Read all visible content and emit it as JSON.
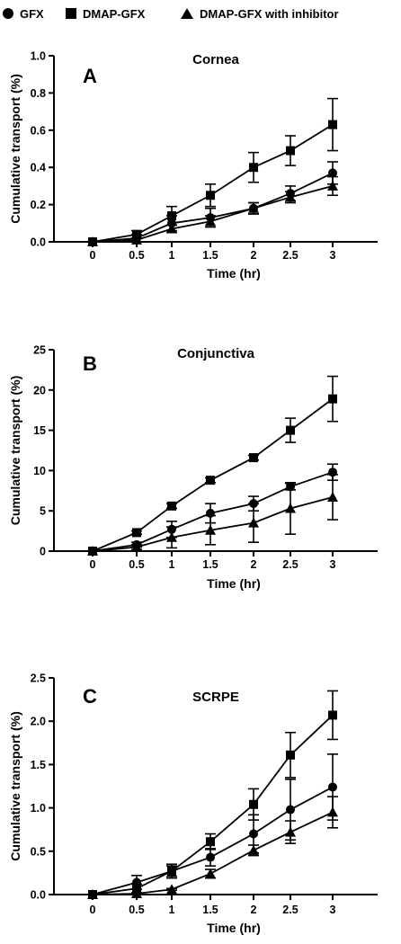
{
  "legend": {
    "items": [
      {
        "label": "GFX",
        "marker": "circle"
      },
      {
        "label": "DMAP-GFX",
        "marker": "square"
      },
      {
        "label": "DMAP-GFX with inhibitor",
        "marker": "triangle"
      }
    ]
  },
  "chart_data": [
    {
      "type": "line",
      "panel_letter": "A",
      "title": "Cornea",
      "xlabel": "Time (hr)",
      "ylabel": "Cumulative transport (%)",
      "x": [
        0,
        0.5,
        1,
        1.5,
        2,
        2.5,
        3
      ],
      "xticks": [
        "0",
        "0.5",
        "1",
        "1.5",
        "2",
        "2.5",
        "3"
      ],
      "ylim": [
        0,
        1.0
      ],
      "yticks": [
        "0.0",
        "0.2",
        "0.4",
        "0.6",
        "0.8",
        "1.0"
      ],
      "grid": false,
      "legend_position": "top",
      "series": [
        {
          "name": "GFX",
          "marker": "circle",
          "values": [
            0,
            0.02,
            0.1,
            0.13,
            0.18,
            0.26,
            0.37
          ],
          "errors": [
            0,
            0.02,
            0.04,
            0.05,
            0.03,
            0.04,
            0.06
          ]
        },
        {
          "name": "DMAP-GFX",
          "marker": "square",
          "values": [
            0,
            0.04,
            0.14,
            0.25,
            0.4,
            0.49,
            0.63
          ],
          "errors": [
            0,
            0.02,
            0.05,
            0.06,
            0.08,
            0.08,
            0.14
          ]
        },
        {
          "name": "DMAP-GFX with inhibitor",
          "marker": "triangle",
          "values": [
            0,
            0.01,
            0.07,
            0.11,
            0.18,
            0.24,
            0.3
          ],
          "errors": [
            0,
            0.01,
            0.02,
            0.03,
            0.03,
            0.03,
            0.05
          ]
        }
      ]
    },
    {
      "type": "line",
      "panel_letter": "B",
      "title": "Conjunctiva",
      "xlabel": "Time (hr)",
      "ylabel": "Cumulative transport (%)",
      "x": [
        0,
        0.5,
        1,
        1.5,
        2,
        2.5,
        3
      ],
      "xticks": [
        "0",
        "0.5",
        "1",
        "1.5",
        "2",
        "2.5",
        "3"
      ],
      "ylim": [
        0,
        25
      ],
      "yticks": [
        "0",
        "5",
        "10",
        "15",
        "20",
        "25"
      ],
      "grid": false,
      "series": [
        {
          "name": "GFX",
          "marker": "circle",
          "values": [
            0,
            0.8,
            2.7,
            4.7,
            5.9,
            8.0,
            9.8
          ],
          "errors": [
            0,
            0.3,
            1.0,
            1.2,
            0.9,
            0.4,
            1.0
          ]
        },
        {
          "name": "DMAP-GFX",
          "marker": "square",
          "values": [
            0,
            2.3,
            5.6,
            8.8,
            11.6,
            15.0,
            18.9
          ],
          "errors": [
            0,
            0.2,
            0.3,
            0.3,
            0.3,
            1.5,
            2.8
          ]
        },
        {
          "name": "DMAP-GFX with inhibitor",
          "marker": "triangle",
          "values": [
            0,
            0.5,
            1.7,
            2.6,
            3.5,
            5.3,
            6.7
          ],
          "errors": [
            0,
            0.3,
            1.3,
            1.8,
            2.4,
            3.2,
            2.8
          ]
        }
      ]
    },
    {
      "type": "line",
      "panel_letter": "C",
      "title": "SCRPE",
      "xlabel": "Time (hr)",
      "ylabel": "Cumulative transport (%)",
      "x": [
        0,
        0.5,
        1,
        1.5,
        2,
        2.5,
        3
      ],
      "xticks": [
        "0",
        "0.5",
        "1",
        "1.5",
        "2",
        "2.5",
        "3"
      ],
      "ylim": [
        0,
        2.5
      ],
      "yticks": [
        "0.0",
        "0.5",
        "1.0",
        "1.5",
        "2.0",
        "2.5"
      ],
      "grid": false,
      "series": [
        {
          "name": "GFX",
          "marker": "circle",
          "values": [
            0,
            0.14,
            0.27,
            0.43,
            0.7,
            0.98,
            1.24
          ],
          "errors": [
            0,
            0.08,
            0.06,
            0.1,
            0.22,
            0.35,
            0.38
          ]
        },
        {
          "name": "DMAP-GFX",
          "marker": "square",
          "values": [
            0,
            0.07,
            0.27,
            0.61,
            1.04,
            1.61,
            2.07
          ],
          "errors": [
            0,
            0.05,
            0.08,
            0.09,
            0.18,
            0.26,
            0.28
          ]
        },
        {
          "name": "DMAP-GFX with inhibitor",
          "marker": "triangle",
          "values": [
            0,
            0.01,
            0.06,
            0.24,
            0.51,
            0.72,
            0.95
          ],
          "errors": [
            0,
            0.01,
            0.01,
            0.05,
            0.06,
            0.13,
            0.18
          ]
        }
      ]
    }
  ]
}
